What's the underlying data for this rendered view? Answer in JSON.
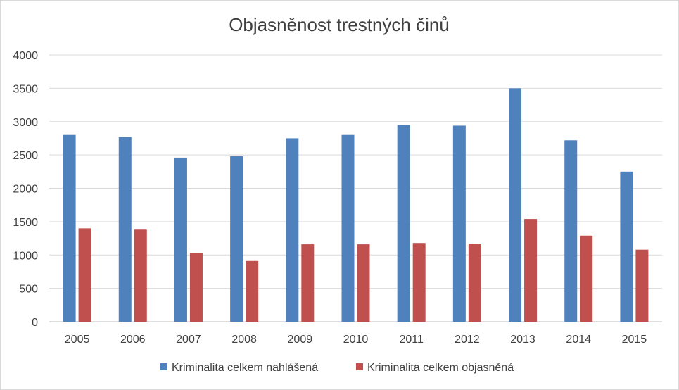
{
  "chart_data": {
    "type": "bar",
    "title": "Objasněnost trestných činů",
    "categories": [
      "2005",
      "2006",
      "2007",
      "2008",
      "2009",
      "2010",
      "2011",
      "2012",
      "2013",
      "2014",
      "2015"
    ],
    "series": [
      {
        "name": "Kriminalita celkem nahlášená",
        "color": "#4f81bd",
        "values": [
          2800,
          2770,
          2460,
          2480,
          2750,
          2800,
          2950,
          2940,
          3500,
          2720,
          2250
        ]
      },
      {
        "name": "Kriminalita celkem objasněná",
        "color": "#c0504d",
        "values": [
          1400,
          1380,
          1030,
          910,
          1160,
          1160,
          1180,
          1170,
          1540,
          1290,
          1080
        ]
      }
    ],
    "y_ticks": [
      "0",
      "500",
      "1000",
      "1500",
      "2000",
      "2500",
      "3000",
      "3500",
      "4000"
    ],
    "ylim": [
      0,
      4000
    ],
    "grid": true,
    "legend_position": "bottom"
  }
}
